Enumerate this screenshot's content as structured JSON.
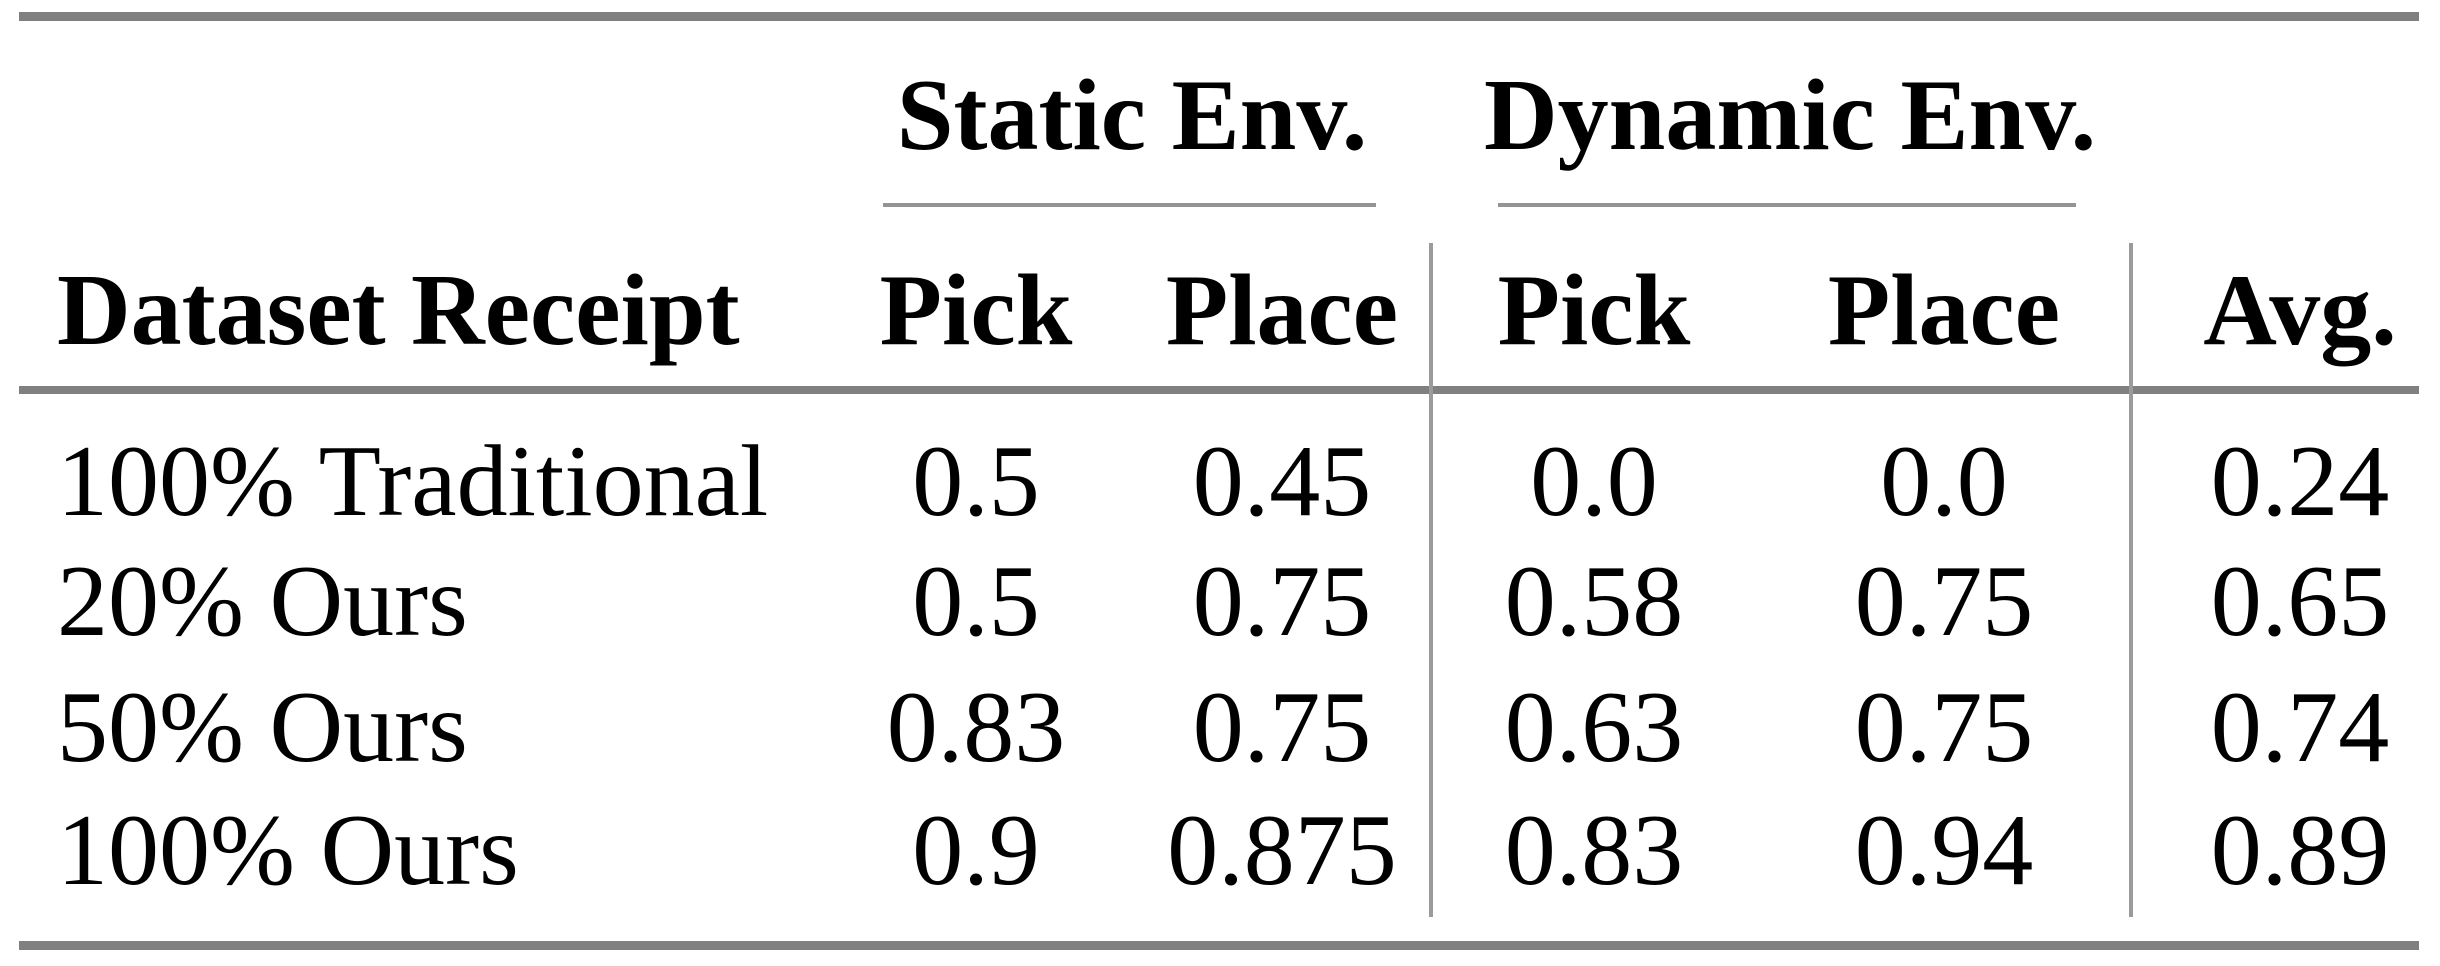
{
  "table": {
    "corner_header": "Dataset Receipt",
    "group_headers": [
      {
        "label": "Static Env."
      },
      {
        "label": "Dynamic Env."
      }
    ],
    "column_headers": [
      "Pick",
      "Place",
      "Pick",
      "Place",
      "Avg."
    ],
    "rows": [
      {
        "label": "100% Traditional",
        "cells": [
          "0.5",
          "0.45",
          "0.0",
          "0.0",
          "0.24"
        ]
      },
      {
        "label": "20% Ours",
        "cells": [
          "0.5",
          "0.75",
          "0.58",
          "0.75",
          "0.65"
        ]
      },
      {
        "label": "50% Ours",
        "cells": [
          "0.83",
          "0.75",
          "0.63",
          "0.75",
          "0.74"
        ]
      },
      {
        "label": "100% Ours",
        "cells": [
          "0.9",
          "0.875",
          "0.83",
          "0.94",
          "0.89"
        ]
      }
    ],
    "colors": {
      "rule_thick": "#808080",
      "rule_thin": "#989898",
      "text": "#000000",
      "background": "#ffffff"
    }
  }
}
